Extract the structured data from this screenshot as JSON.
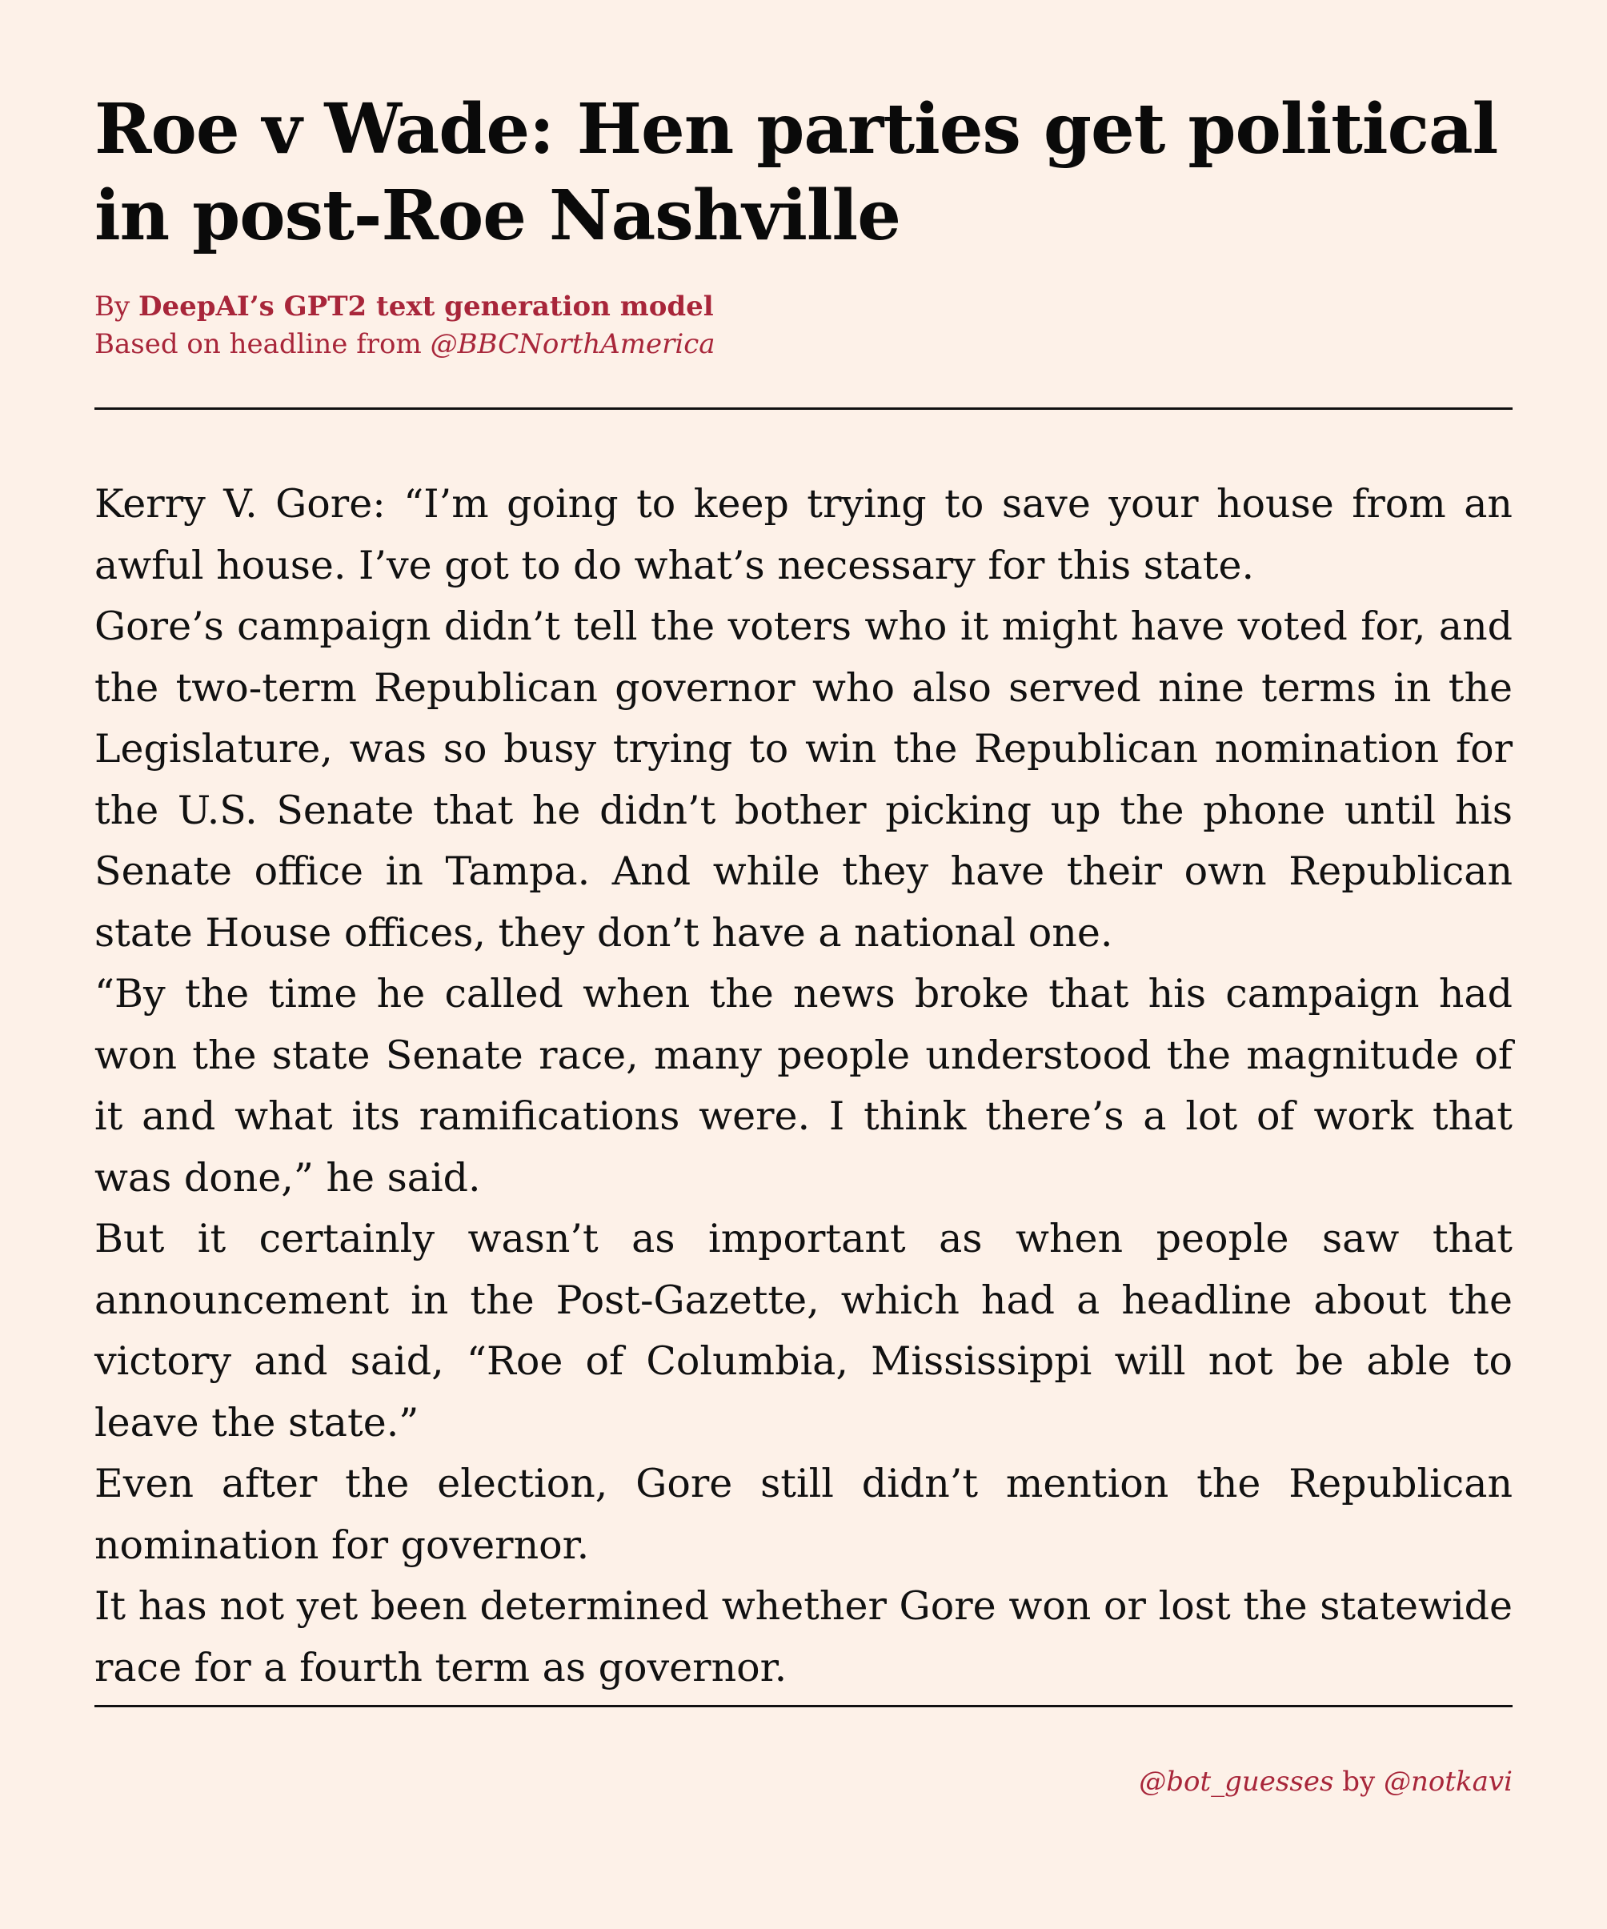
{
  "article": {
    "headline": "Roe v Wade: Hen parties get political in post-Roe Nashville",
    "byline": {
      "by_label": "By ",
      "author": "DeepAI’s GPT2 text generation model",
      "source_label": "Based on headline from ",
      "source_handle": "@BBCNorthAmerica"
    },
    "paragraphs": [
      "Kerry V. Gore: “I’m going to keep trying to save your house from an awful house. I’ve got to do what’s necessary for this state.",
      "Gore’s campaign didn’t tell the voters who it might have voted for, and the two-term Republican governor who also served nine terms in the Legislature, was so busy trying to win the Republican nomination for the U.S. Senate that he didn’t bother picking up the phone until his Senate office in Tampa.  And while they have their own Republican state House offices, they don’t have a national one.",
      "“By the time he called when the news broke that his campaign had won the state Senate race, many people understood the magnitude of it and what its ramifications were.  I think there’s a lot of work that was done,” he said.",
      "But it certainly wasn’t as important as when people saw that announcement in the Post-Gazette, which had a headline about the victory and said, “Roe of Columbia, Mississippi will not be able to leave the state.”",
      "Even after the election, Gore still didn’t mention the Republican nomination for governor.",
      "It has not yet been determined whether Gore won or lost the statewide race for a fourth term as governor."
    ]
  },
  "footer": {
    "bot_handle": "@bot_guesses",
    "by_label": " by ",
    "author_handle": "@notkavi"
  },
  "colors": {
    "background": "#fdf1e8",
    "accent": "#a8263a",
    "text": "#111111"
  }
}
